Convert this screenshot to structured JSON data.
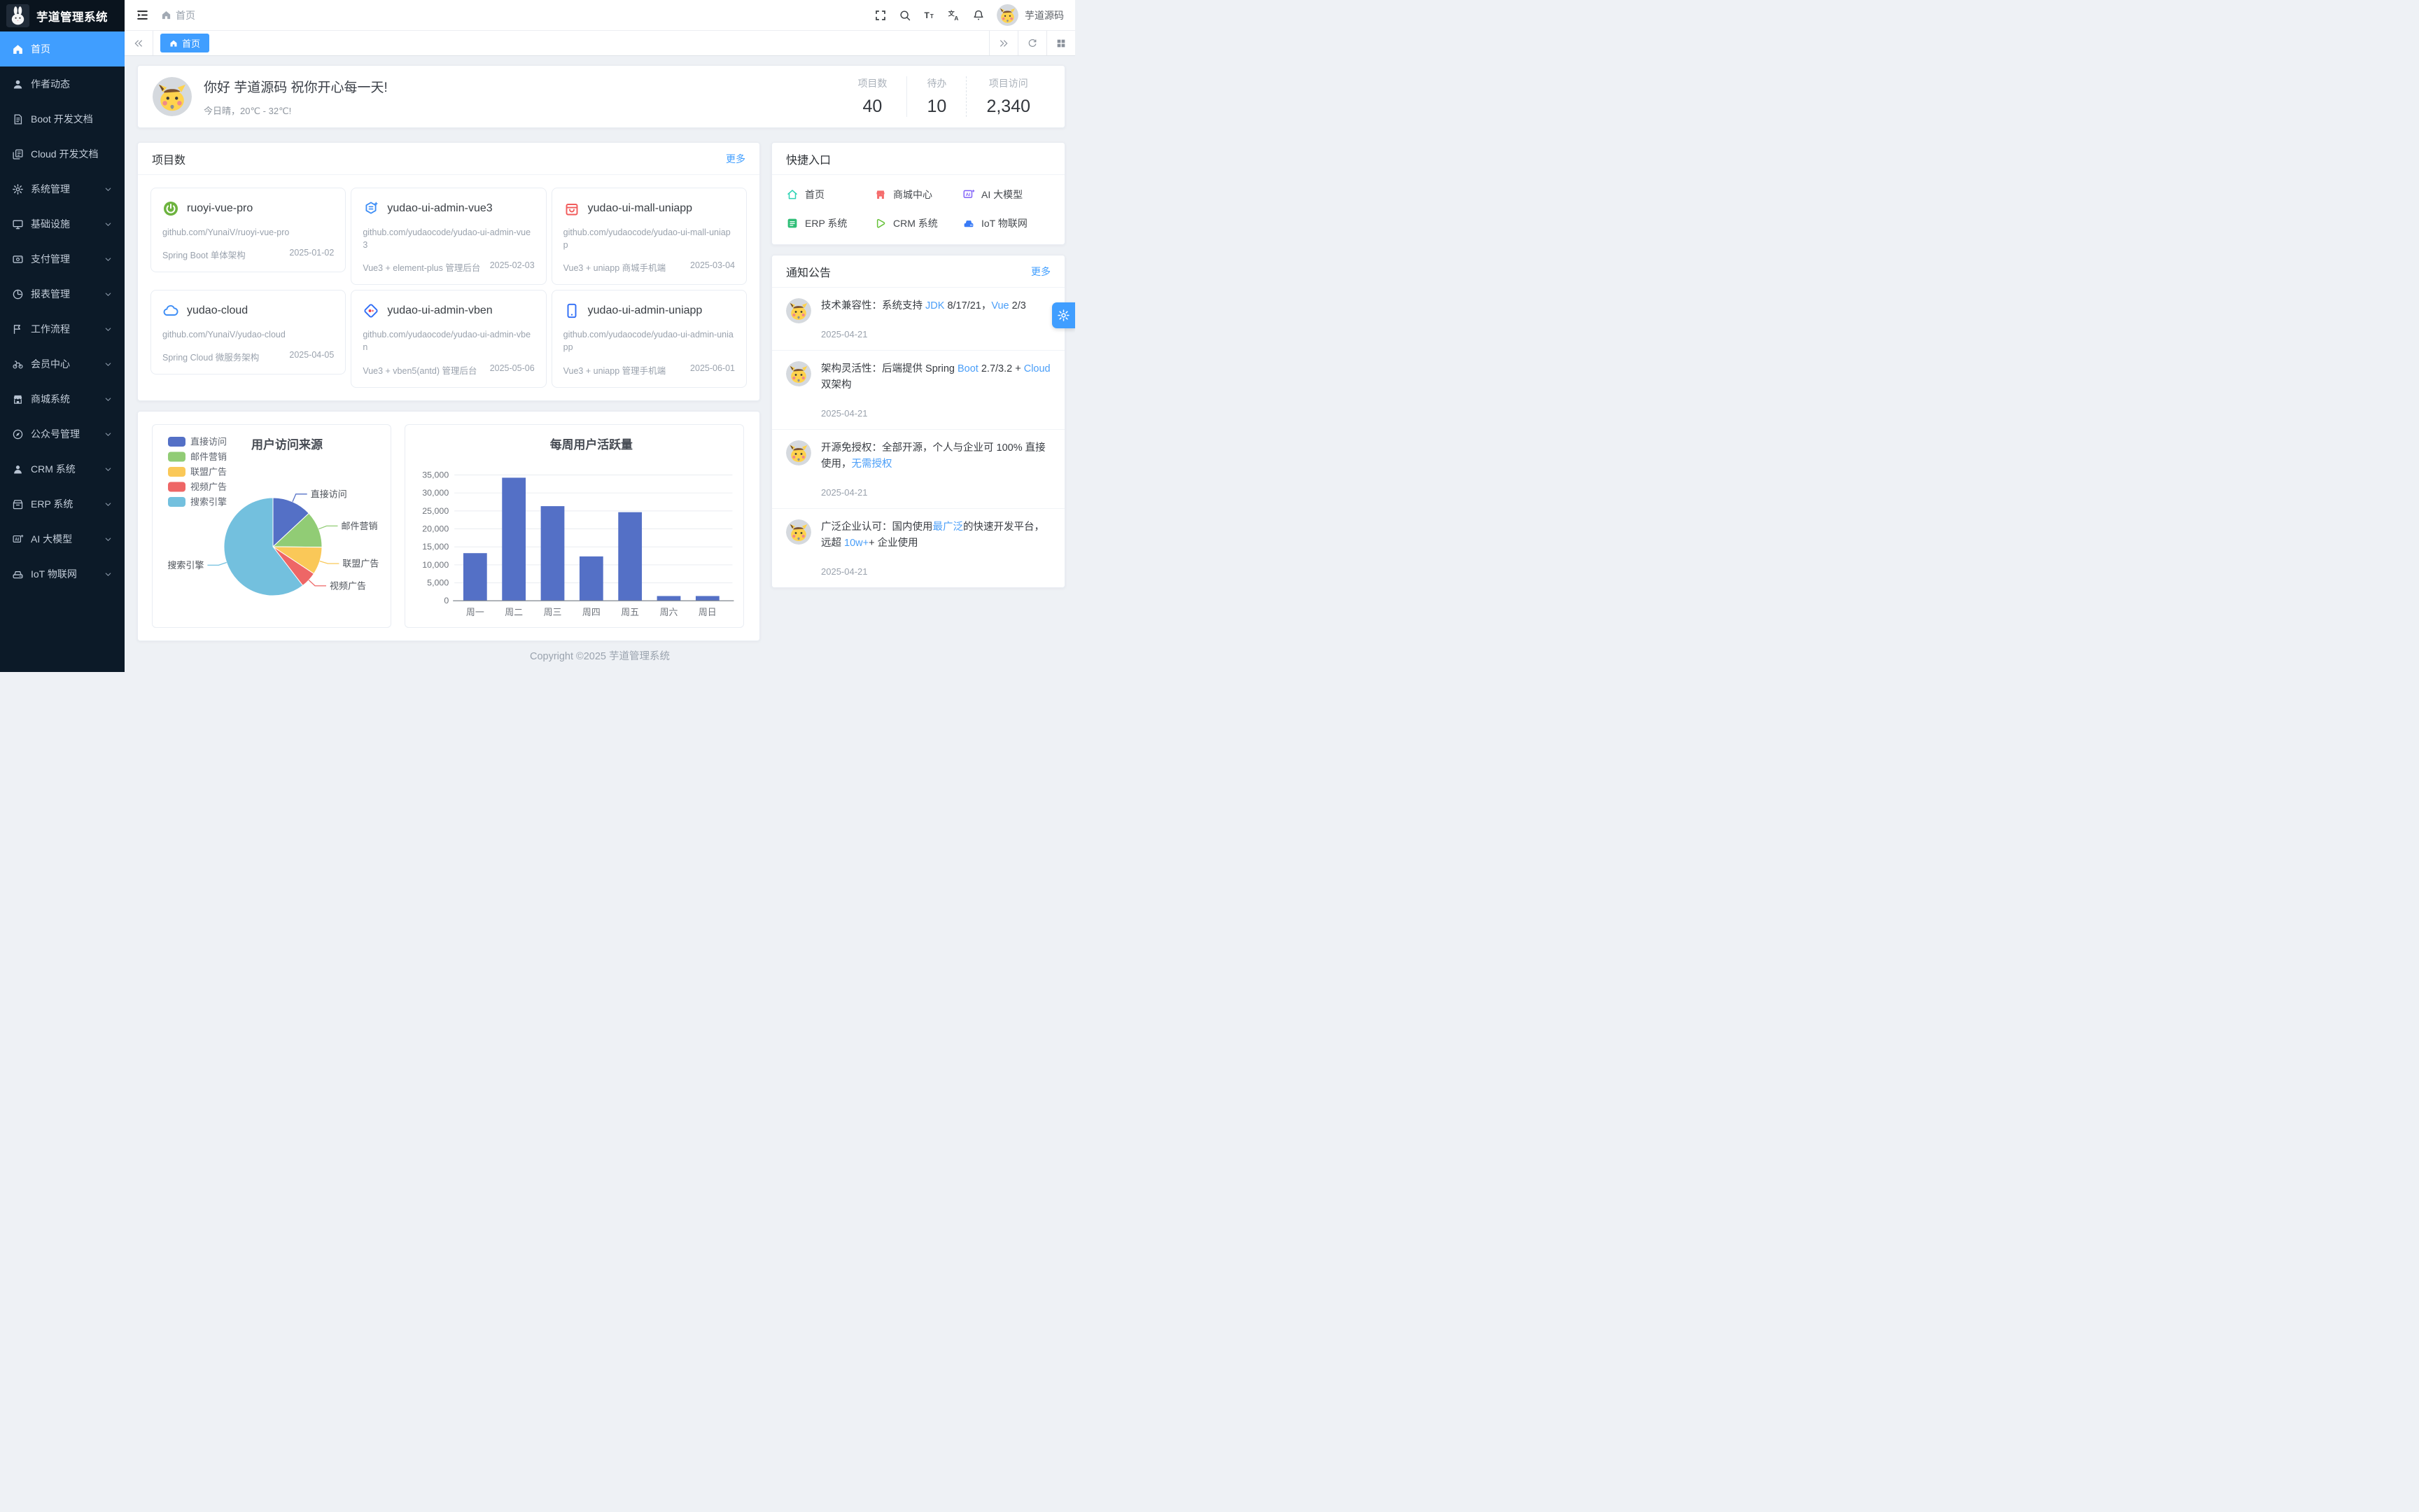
{
  "colors": {
    "accent": "#409eff",
    "link": "#4a9ef8",
    "sidebar_bg": "#0c1a28",
    "palette": [
      "#5470c6",
      "#91cc75",
      "#fac858",
      "#ee6666",
      "#73c0de"
    ]
  },
  "sidebar": {
    "logo_title": "芋道管理系统",
    "items": [
      {
        "label": "首页",
        "icon": "home",
        "active": true,
        "has_children": false
      },
      {
        "label": "作者动态",
        "icon": "user",
        "active": false,
        "has_children": false
      },
      {
        "label": "Boot 开发文档",
        "icon": "document",
        "active": false,
        "has_children": false
      },
      {
        "label": "Cloud 开发文档",
        "icon": "documents",
        "active": false,
        "has_children": false
      },
      {
        "label": "系统管理",
        "icon": "gear",
        "active": false,
        "has_children": true
      },
      {
        "label": "基础设施",
        "icon": "monitor",
        "active": false,
        "has_children": true
      },
      {
        "label": "支付管理",
        "icon": "payment",
        "active": false,
        "has_children": true
      },
      {
        "label": "报表管理",
        "icon": "report",
        "active": false,
        "has_children": true
      },
      {
        "label": "工作流程",
        "icon": "workflow",
        "active": false,
        "has_children": true
      },
      {
        "label": "会员中心",
        "icon": "member",
        "active": false,
        "has_children": true
      },
      {
        "label": "商城系统",
        "icon": "mall",
        "active": false,
        "has_children": true
      },
      {
        "label": "公众号管理",
        "icon": "compass",
        "active": false,
        "has_children": true
      },
      {
        "label": "CRM 系统",
        "icon": "crm",
        "active": false,
        "has_children": true
      },
      {
        "label": "ERP 系统",
        "icon": "erp",
        "active": false,
        "has_children": true
      },
      {
        "label": "AI 大模型",
        "icon": "ai",
        "active": false,
        "has_children": true
      },
      {
        "label": "IoT 物联网",
        "icon": "iot",
        "active": false,
        "has_children": true
      }
    ]
  },
  "navbar": {
    "breadcrumb": "首页",
    "username": "芋道源码"
  },
  "tabbar": {
    "tabs": [
      {
        "label": "首页",
        "active": true
      }
    ]
  },
  "welcome": {
    "greeting": "你好 芋道源码 祝你开心每一天!",
    "weather": "今日晴，20℃ - 32℃!",
    "stats": [
      {
        "label": "项目数",
        "value": "40"
      },
      {
        "label": "待办",
        "value": "10"
      },
      {
        "label": "项目访问",
        "value": "2,340"
      }
    ]
  },
  "projects": {
    "title": "项目数",
    "more_label": "更多",
    "cards": [
      {
        "name": "ruoyi-vue-pro",
        "icon": "spring",
        "url": "github.com/YunaiV/ruoyi-vue-pro",
        "desc": "Spring Boot 单体架构",
        "date": "2025-01-02"
      },
      {
        "name": "yudao-ui-admin-vue3",
        "icon": "vue",
        "url": "github.com/yudaocode/yudao-ui-admin-vue3",
        "desc": "Vue3 + element-plus 管理后台",
        "date": "2025-02-03"
      },
      {
        "name": "yudao-ui-mall-uniapp",
        "icon": "bag",
        "url": "github.com/yudaocode/yudao-ui-mall-uniapp",
        "desc": "Vue3 + uniapp 商城手机端",
        "date": "2025-03-04"
      },
      {
        "name": "yudao-cloud",
        "icon": "cloud",
        "url": "github.com/YunaiV/yudao-cloud",
        "desc": "Spring Cloud 微服务架构",
        "date": "2025-04-05"
      },
      {
        "name": "yudao-ui-admin-vben",
        "icon": "vben",
        "url": "github.com/yudaocode/yudao-ui-admin-vben",
        "desc": "Vue3 + vben5(antd) 管理后台",
        "date": "2025-05-06"
      },
      {
        "name": "yudao-ui-admin-uniapp",
        "icon": "phone",
        "url": "github.com/yudaocode/yudao-ui-admin-uniapp",
        "desc": "Vue3 + uniapp 管理手机端",
        "date": "2025-06-01"
      }
    ]
  },
  "quick": {
    "title": "快捷入口",
    "entries": [
      {
        "label": "首页",
        "icon": "q-home"
      },
      {
        "label": "商城中心",
        "icon": "q-mall"
      },
      {
        "label": "AI 大模型",
        "icon": "q-ai"
      },
      {
        "label": "ERP 系统",
        "icon": "q-erp"
      },
      {
        "label": "CRM 系统",
        "icon": "q-crm"
      },
      {
        "label": "IoT 物联网",
        "icon": "q-iot"
      }
    ]
  },
  "notices": {
    "title": "通知公告",
    "more_label": "更多",
    "items": [
      {
        "date": "2025-04-21",
        "segments": [
          {
            "text": "技术兼容性：系统支持 ",
            "hl": false
          },
          {
            "text": "JDK",
            "hl": true
          },
          {
            "text": " 8/17/21，",
            "hl": false
          },
          {
            "text": "Vue",
            "hl": true
          },
          {
            "text": " 2/3",
            "hl": false
          }
        ]
      },
      {
        "date": "2025-04-21",
        "segments": [
          {
            "text": "架构灵活性：后端提供 Spring ",
            "hl": false
          },
          {
            "text": "Boot",
            "hl": true
          },
          {
            "text": " 2.7/3.2 + ",
            "hl": false
          },
          {
            "text": "Cloud",
            "hl": true
          },
          {
            "text": " 双架构",
            "hl": false
          }
        ]
      },
      {
        "date": "2025-04-21",
        "segments": [
          {
            "text": "开源免授权：全部开源，个人与企业可 100% 直接使用，",
            "hl": false
          },
          {
            "text": "无需授权",
            "hl": true
          }
        ]
      },
      {
        "date": "2025-04-21",
        "segments": [
          {
            "text": "广泛企业认可：国内使用",
            "hl": false
          },
          {
            "text": "最广泛",
            "hl": true
          },
          {
            "text": "的快速开发平台，远超 ",
            "hl": false
          },
          {
            "text": "10w+",
            "hl": true
          },
          {
            "text": "+ 企业使用",
            "hl": false
          }
        ]
      }
    ]
  },
  "chart_data": [
    {
      "type": "pie",
      "title": "用户访问来源",
      "legend_position": "top-left",
      "categories": [
        "直接访问",
        "邮件营销",
        "联盟广告",
        "视频广告",
        "搜索引擎"
      ],
      "values": [
        335,
        310,
        234,
        135,
        1548
      ],
      "colors": [
        "#5470c6",
        "#91cc75",
        "#fac858",
        "#ee6666",
        "#73c0de"
      ]
    },
    {
      "type": "bar",
      "title": "每周用户活跃量",
      "categories": [
        "周一",
        "周二",
        "周三",
        "周四",
        "周五",
        "周六",
        "周日"
      ],
      "values": [
        13253,
        34235,
        26321,
        12340,
        24643,
        1322,
        1324
      ],
      "ylim": [
        0,
        35000
      ],
      "ytick_step": 5000,
      "bar_color": "#5470c6",
      "grid": true
    }
  ],
  "footer": {
    "copyright": "Copyright ©2025 芋道管理系统"
  }
}
